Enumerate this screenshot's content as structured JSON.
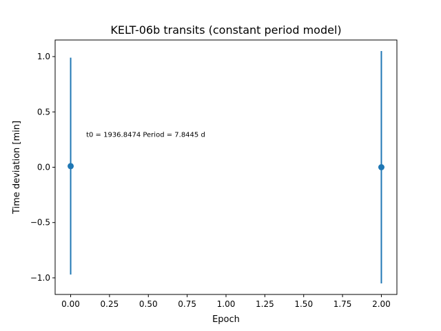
{
  "chart_data": {
    "type": "scatter",
    "title": "KELT-06b transits (constant period model)",
    "xlabel": "Epoch",
    "ylabel": "Time deviation [min]",
    "xlim": [
      -0.1,
      2.1
    ],
    "ylim": [
      -1.15,
      1.15
    ],
    "xticks": [
      0.0,
      0.25,
      0.5,
      0.75,
      1.0,
      1.25,
      1.5,
      1.75,
      2.0
    ],
    "xtick_labels": [
      "0.00",
      "0.25",
      "0.50",
      "0.75",
      "1.00",
      "1.25",
      "1.50",
      "1.75",
      "2.00"
    ],
    "yticks": [
      -1.0,
      -0.5,
      0.0,
      0.5,
      1.0
    ],
    "ytick_labels": [
      "−1.0",
      "−0.5",
      "0.0",
      "0.5",
      "1.0"
    ],
    "grid": false,
    "series": [
      {
        "color": "#1f77b4",
        "points": [
          {
            "x": 0,
            "y": 0.01,
            "yerr": 0.98
          },
          {
            "x": 2,
            "y": 0.0,
            "yerr": 1.05
          }
        ]
      }
    ],
    "annotation": {
      "text": "t0 = 1936.8474 Period = 7.8445 d",
      "x": 0.1,
      "y": 0.3
    }
  }
}
